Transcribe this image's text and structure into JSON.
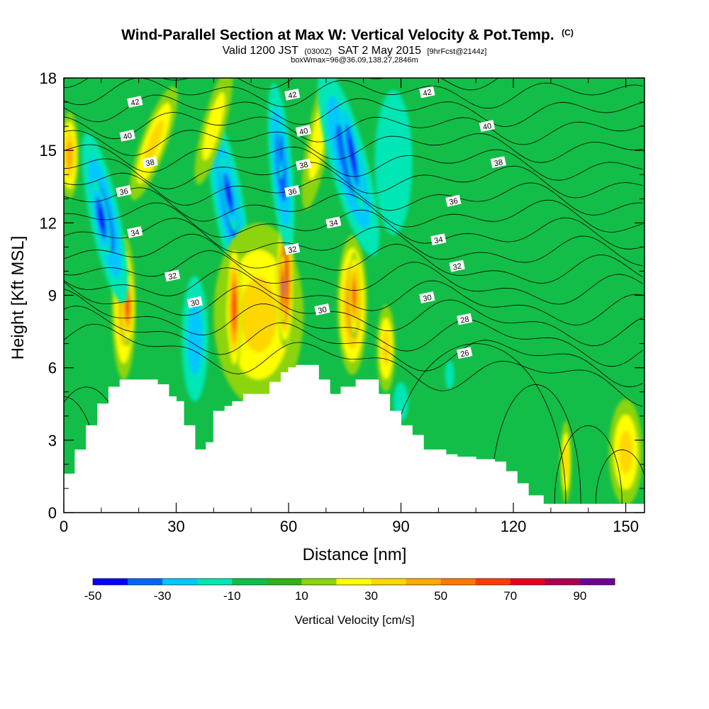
{
  "header": {
    "title": "Wind-Parallel Section at Max W: Vertical Velocity & Pot.Temp.",
    "title_mark": "(C)",
    "subtitle_pre": "Valid 1200 JST",
    "subtitle_z": "(0300Z)",
    "subtitle_date": "SAT 2 May 2015",
    "subtitle_fcst": "[9hrFcst@2144z]",
    "subtitle3": "boxWmax=96@36.09,138.27,2846m"
  },
  "chart_data": {
    "type": "heatmap",
    "xlabel": "Distance [nm]",
    "ylabel": "Height [Kft MSL]",
    "xlim": [
      0,
      155
    ],
    "ylim": [
      0,
      18
    ],
    "x_ticks": [
      0,
      30,
      60,
      90,
      120,
      150
    ],
    "y_ticks": [
      0,
      3,
      6,
      9,
      12,
      15,
      18
    ],
    "background_color": "#12be47",
    "terrain": {
      "color": "#ffffff",
      "profile": [
        [
          0,
          1.6
        ],
        [
          3,
          1.6
        ],
        [
          3,
          2.6
        ],
        [
          6,
          2.6
        ],
        [
          6,
          3.6
        ],
        [
          9,
          3.6
        ],
        [
          9,
          4.5
        ],
        [
          12,
          4.5
        ],
        [
          12,
          5.2
        ],
        [
          15,
          5.2
        ],
        [
          15,
          5.5
        ],
        [
          25,
          5.5
        ],
        [
          25,
          5.3
        ],
        [
          28,
          5.3
        ],
        [
          28,
          4.8
        ],
        [
          30,
          4.8
        ],
        [
          30,
          4.6
        ],
        [
          32,
          4.6
        ],
        [
          32,
          3.6
        ],
        [
          35,
          3.6
        ],
        [
          35,
          2.6
        ],
        [
          38,
          2.6
        ],
        [
          38,
          2.9
        ],
        [
          40,
          2.9
        ],
        [
          40,
          4.2
        ],
        [
          43,
          4.2
        ],
        [
          43,
          4.4
        ],
        [
          45,
          4.4
        ],
        [
          45,
          4.6
        ],
        [
          48,
          4.6
        ],
        [
          48,
          4.9
        ],
        [
          55,
          4.9
        ],
        [
          55,
          5.4
        ],
        [
          58,
          5.4
        ],
        [
          58,
          5.8
        ],
        [
          60,
          5.8
        ],
        [
          60,
          6.0
        ],
        [
          62,
          6.0
        ],
        [
          62,
          6.1
        ],
        [
          68,
          6.1
        ],
        [
          68,
          5.5
        ],
        [
          71,
          5.5
        ],
        [
          71,
          4.9
        ],
        [
          74,
          4.9
        ],
        [
          74,
          5.2
        ],
        [
          78,
          5.2
        ],
        [
          78,
          5.5
        ],
        [
          84,
          5.5
        ],
        [
          84,
          4.9
        ],
        [
          87,
          4.9
        ],
        [
          87,
          4.2
        ],
        [
          90,
          4.2
        ],
        [
          90,
          3.6
        ],
        [
          93,
          3.6
        ],
        [
          93,
          3.2
        ],
        [
          96,
          3.2
        ],
        [
          96,
          2.6
        ],
        [
          102,
          2.6
        ],
        [
          102,
          2.4
        ],
        [
          105,
          2.4
        ],
        [
          105,
          2.3
        ],
        [
          110,
          2.3
        ],
        [
          110,
          2.2
        ],
        [
          115,
          2.2
        ],
        [
          115,
          2.1
        ],
        [
          118,
          2.1
        ],
        [
          118,
          1.7
        ],
        [
          121,
          1.7
        ],
        [
          121,
          1.2
        ],
        [
          124,
          1.2
        ],
        [
          124,
          0.7
        ],
        [
          128,
          0.7
        ],
        [
          128,
          0.35
        ],
        [
          155,
          0.35
        ]
      ]
    },
    "vertical_velocity": {
      "units": "cm/s",
      "label": "Vertical Velocity [cm/s]",
      "levels": [
        -50,
        -40,
        -30,
        -20,
        -10,
        0,
        10,
        20,
        30,
        40,
        50,
        60,
        70,
        80,
        90,
        100
      ],
      "colors": [
        "#0000ff",
        "#0064ff",
        "#00c8ff",
        "#00e6b4",
        "#12be47",
        "#30b318",
        "#8cd40f",
        "#ffff00",
        "#ffd700",
        "#ffaa00",
        "#ff7800",
        "#ff3c00",
        "#e6001e",
        "#aa0050",
        "#6e0096"
      ],
      "colorbar_ticks": [
        -50,
        -30,
        -10,
        10,
        30,
        50,
        70,
        90
      ],
      "features": [
        {
          "x": 1.5,
          "y": 14.8,
          "w": 42,
          "rx": 2.5,
          "ry": 1.8,
          "rot": 0
        },
        {
          "x": 16,
          "y": 8.5,
          "w": 48,
          "rx": 3.2,
          "ry": 3.0,
          "rot": 0
        },
        {
          "x": 17,
          "y": 8.5,
          "w": 62,
          "rx": 1.8,
          "ry": 1.6,
          "rot": 0
        },
        {
          "x": 11,
          "y": 12.2,
          "w": -38,
          "rx": 4,
          "ry": 3.6,
          "rot": -12
        },
        {
          "x": 10,
          "y": 12.2,
          "w": -45,
          "rx": 2.0,
          "ry": 1.6,
          "rot": -10
        },
        {
          "x": 24,
          "y": 15.3,
          "w": 32,
          "rx": 3.5,
          "ry": 2.5,
          "rot": 20
        },
        {
          "x": 35,
          "y": 7.2,
          "w": -22,
          "rx": 3.5,
          "ry": 2.6,
          "rot": 0
        },
        {
          "x": 44,
          "y": 12.8,
          "w": -35,
          "rx": 4,
          "ry": 3.6,
          "rot": -10
        },
        {
          "x": 44,
          "y": 13.2,
          "w": -40,
          "rx": 1.8,
          "ry": 1.6,
          "rot": -10
        },
        {
          "x": 40,
          "y": 16.0,
          "w": 28,
          "rx": 3,
          "ry": 2.5,
          "rot": 15
        },
        {
          "x": 52,
          "y": 8.2,
          "w": 38,
          "rx": 12,
          "ry": 3.8,
          "rot": 0
        },
        {
          "x": 45.5,
          "y": 8.5,
          "w": 66,
          "rx": 2.0,
          "ry": 2.8,
          "rot": 0
        },
        {
          "x": 59,
          "y": 9.6,
          "w": 84,
          "rx": 2.3,
          "ry": 2.8,
          "rot": 0
        },
        {
          "x": 58.5,
          "y": 9.3,
          "w": 95,
          "rx": 0.9,
          "ry": 1.5,
          "rot": 0
        },
        {
          "x": 58,
          "y": 14.3,
          "w": -36,
          "rx": 3,
          "ry": 3.5,
          "rot": -5
        },
        {
          "x": 58,
          "y": 15.0,
          "w": -42,
          "rx": 0.9,
          "ry": 1.2,
          "rot": 0
        },
        {
          "x": 68,
          "y": 15.5,
          "w": 28,
          "rx": 3,
          "ry": 3,
          "rot": 10
        },
        {
          "x": 77,
          "y": 8.6,
          "w": 50,
          "rx": 4,
          "ry": 2.9,
          "rot": 0
        },
        {
          "x": 77.5,
          "y": 9.0,
          "w": 66,
          "rx": 1.4,
          "ry": 1.8,
          "rot": 0
        },
        {
          "x": 76,
          "y": 14.5,
          "w": -38,
          "rx": 5,
          "ry": 4,
          "rot": -15
        },
        {
          "x": 77,
          "y": 14.8,
          "w": -45,
          "rx": 1.8,
          "ry": 2.4,
          "rot": -10
        },
        {
          "x": 86,
          "y": 6.8,
          "w": 30,
          "rx": 2.5,
          "ry": 1.8,
          "rot": 0
        },
        {
          "x": 88,
          "y": 14.5,
          "w": -12,
          "rx": 5,
          "ry": 3,
          "rot": 0
        },
        {
          "x": 90,
          "y": 4.6,
          "w": -12,
          "rx": 2,
          "ry": 0.8,
          "rot": 0
        },
        {
          "x": 103,
          "y": 5.7,
          "w": -15,
          "rx": 1.2,
          "ry": 0.6,
          "rot": 0
        },
        {
          "x": 134,
          "y": 2.1,
          "w": 32,
          "rx": 1.5,
          "ry": 1.7,
          "rot": 0
        },
        {
          "x": 150,
          "y": 2.5,
          "w": 38,
          "rx": 4.5,
          "ry": 2.2,
          "rot": 0
        }
      ]
    },
    "potential_temperature": {
      "units": "C",
      "levels": [
        26,
        27,
        28,
        29,
        30,
        31,
        32,
        33,
        34,
        35,
        36,
        37,
        38,
        39,
        40,
        41,
        42,
        43
      ],
      "labels": [
        {
          "text": "42",
          "x": 19,
          "y": 17.0
        },
        {
          "text": "42",
          "x": 61,
          "y": 17.3
        },
        {
          "text": "42",
          "x": 97,
          "y": 17.4
        },
        {
          "text": "40",
          "x": 17,
          "y": 15.6
        },
        {
          "text": "40",
          "x": 64,
          "y": 15.8
        },
        {
          "text": "40",
          "x": 113,
          "y": 16.0
        },
        {
          "text": "38",
          "x": 23,
          "y": 14.5
        },
        {
          "text": "38",
          "x": 64,
          "y": 14.4
        },
        {
          "text": "38",
          "x": 116,
          "y": 14.5
        },
        {
          "text": "36",
          "x": 16,
          "y": 13.3
        },
        {
          "text": "36",
          "x": 61,
          "y": 13.3
        },
        {
          "text": "36",
          "x": 104,
          "y": 12.9
        },
        {
          "text": "34",
          "x": 19,
          "y": 11.6
        },
        {
          "text": "34",
          "x": 72,
          "y": 12.0
        },
        {
          "text": "34",
          "x": 100,
          "y": 11.3
        },
        {
          "text": "32",
          "x": 29,
          "y": 9.8
        },
        {
          "text": "32",
          "x": 61,
          "y": 10.9
        },
        {
          "text": "32",
          "x": 105,
          "y": 10.2
        },
        {
          "text": "30",
          "x": 35,
          "y": 8.7
        },
        {
          "text": "30",
          "x": 69,
          "y": 8.4
        },
        {
          "text": "30",
          "x": 97,
          "y": 8.9
        },
        {
          "text": "28",
          "x": 107,
          "y": 8.0
        },
        {
          "text": "26",
          "x": 107,
          "y": 6.6
        }
      ]
    }
  }
}
